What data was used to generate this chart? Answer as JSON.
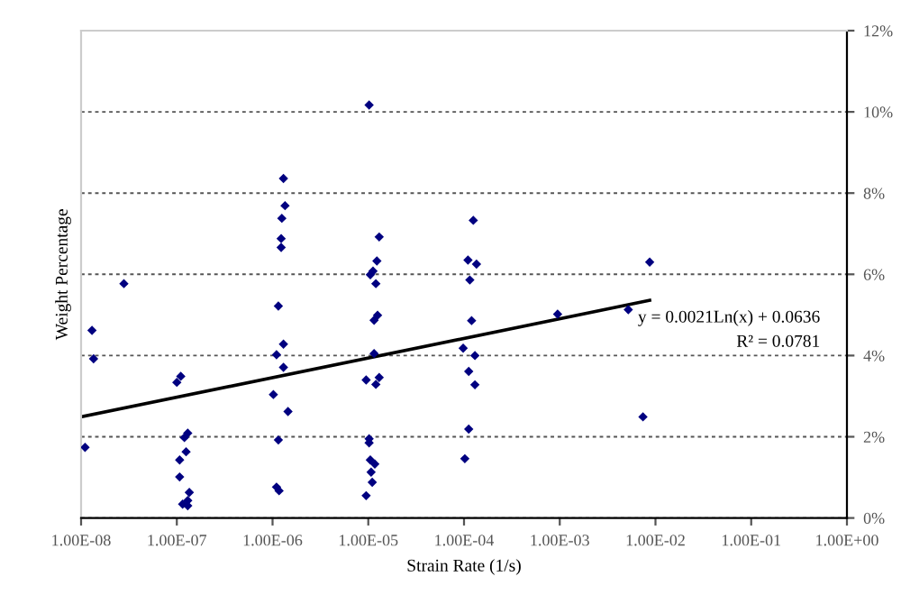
{
  "chart_data": {
    "type": "scatter",
    "xlabel": "Strain Rate (1/s)",
    "ylabel": "Weight Percentage",
    "log": "x",
    "xlim": [
      1e-08,
      1
    ],
    "ylim": [
      0,
      12
    ],
    "xticks": [
      {
        "value": 1e-08,
        "label": "1.00E-08"
      },
      {
        "value": 1e-07,
        "label": "1.00E-07"
      },
      {
        "value": 1e-06,
        "label": "1.00E-06"
      },
      {
        "value": 1e-05,
        "label": "1.00E-05"
      },
      {
        "value": 0.0001,
        "label": "1.00E-04"
      },
      {
        "value": 0.001,
        "label": "1.00E-03"
      },
      {
        "value": 0.01,
        "label": "1.00E-02"
      },
      {
        "value": 0.1,
        "label": "1.00E-01"
      },
      {
        "value": 1,
        "label": "1.00E+00"
      }
    ],
    "yticks": [
      {
        "value": 0,
        "label": "0%"
      },
      {
        "value": 2,
        "label": "2%"
      },
      {
        "value": 4,
        "label": "4%"
      },
      {
        "value": 6,
        "label": "6%"
      },
      {
        "value": 8,
        "label": "8%"
      },
      {
        "value": 10,
        "label": "10%"
      },
      {
        "value": 12,
        "label": "12%"
      }
    ],
    "grid": "y",
    "legend": false,
    "marker": "diamond",
    "annotations": [
      "y = 0.0021Ln(x) + 0.0636",
      "R² = 0.0781"
    ],
    "series": [
      {
        "color": "#000080",
        "x": [
          1.1e-08,
          1.3e-08,
          1.35e-08,
          2.8e-08,
          1e-07,
          1.1e-07,
          1.2e-07,
          1.3e-07,
          1.25e-07,
          1.07e-07,
          1.07e-07,
          1.35e-07,
          1.3e-07,
          1.15e-07,
          1.3e-07,
          1.3e-06,
          1.35e-06,
          1.25e-06,
          1.23e-06,
          1.23e-06,
          1.15e-06,
          1.3e-06,
          1.1e-06,
          1.3e-06,
          1.02e-06,
          1.45e-06,
          1.15e-06,
          1.1e-06,
          1.17e-06,
          1.02e-05,
          1.3e-05,
          1.23e-05,
          1.12e-05,
          1.05e-05,
          1.2e-05,
          1.25e-05,
          1.15e-05,
          1.15e-05,
          9.5e-06,
          1.3e-05,
          1.2e-05,
          1.02e-05,
          1.02e-05,
          1.05e-05,
          1.17e-05,
          1.07e-05,
          1.1e-05,
          9.5e-06,
          0.000125,
          0.00011,
          0.000135,
          0.000115,
          0.00012,
          9.8e-05,
          0.00013,
          0.000112,
          0.00013,
          0.000112,
          0.000102,
          0.00095,
          0.0052,
          0.0087,
          0.0074
        ],
        "values": [
          1.74,
          4.62,
          3.92,
          5.77,
          3.34,
          3.49,
          1.98,
          2.09,
          1.63,
          1.43,
          1.01,
          0.63,
          0.43,
          0.34,
          0.3,
          8.36,
          7.69,
          7.38,
          6.88,
          6.66,
          5.22,
          4.28,
          4.02,
          3.71,
          3.04,
          2.62,
          1.92,
          0.76,
          0.67,
          10.17,
          6.92,
          6.33,
          6.08,
          5.99,
          5.77,
          4.99,
          4.87,
          4.05,
          3.4,
          3.46,
          3.29,
          1.95,
          1.85,
          1.43,
          1.33,
          1.13,
          0.88,
          0.55,
          7.33,
          6.35,
          6.25,
          5.86,
          4.86,
          4.18,
          4.0,
          3.61,
          3.28,
          2.19,
          1.46,
          5.02,
          5.13,
          6.3,
          2.49
        ]
      },
      {
        "type": "line",
        "color": "#000000",
        "marker": "none",
        "line_style": "solid",
        "x": [
          1e-08,
          0.0087
        ],
        "values": [
          2.49,
          5.36
        ]
      }
    ]
  }
}
